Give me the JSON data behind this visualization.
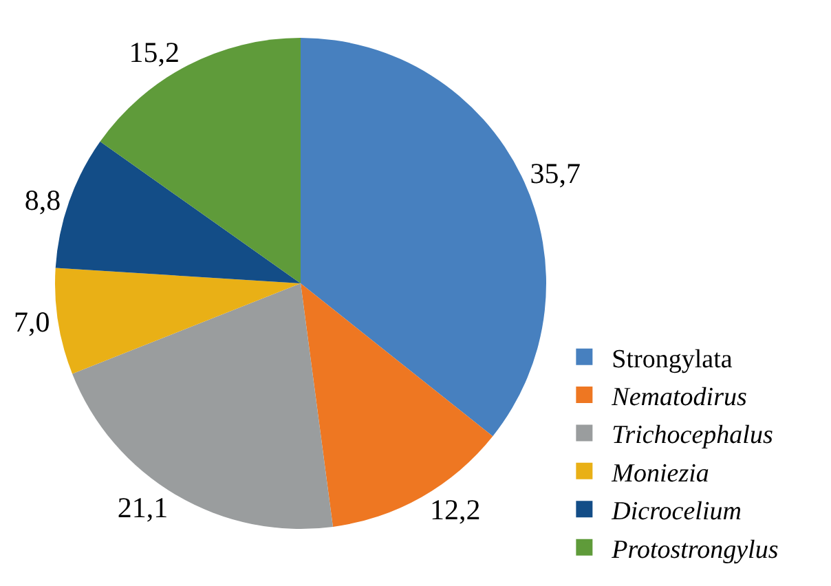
{
  "chart_data": {
    "type": "pie",
    "categories": [
      "Strongylata",
      "Nematodirus",
      "Trichocephalus",
      "Moniezia",
      "Dicrocelium",
      "Protostrongylus"
    ],
    "values": [
      35.7,
      12.2,
      21.1,
      7.0,
      8.8,
      15.2
    ],
    "value_labels": [
      "35,7",
      "12,2",
      "21,1",
      "7,0",
      "8,8",
      "15,2"
    ],
    "colors": [
      "#4780bf",
      "#ee7722",
      "#9a9d9e",
      "#e9b016",
      "#134d87",
      "#5f9b3a"
    ],
    "legend": "bottom right"
  }
}
